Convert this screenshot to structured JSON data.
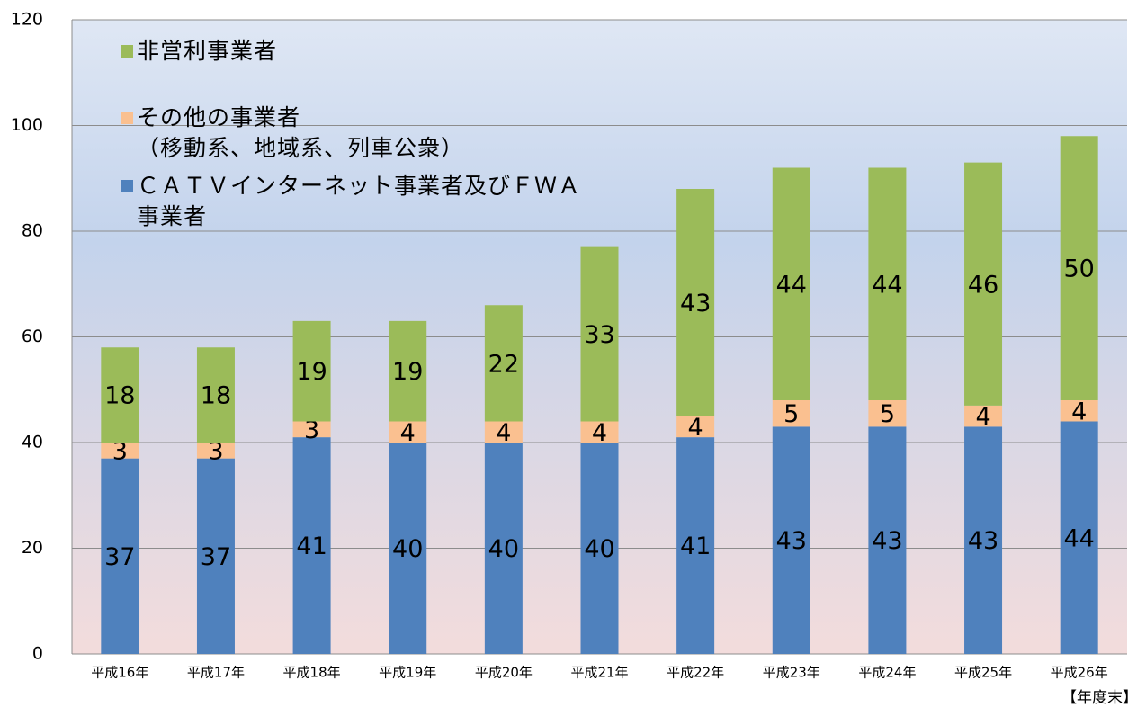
{
  "chart_data": {
    "type": "stacked_bar",
    "x_label": "【年度末】",
    "categories": [
      "平成16年",
      "平成17年",
      "平成18年",
      "平成19年",
      "平成20年",
      "平成21年",
      "平成22年",
      "平成23年",
      "平成24年",
      "平成25年",
      "平成26年"
    ],
    "series": [
      {
        "name": "ＣＡＴＶインターネット事業者及びＦＷＡ\n事業者",
        "color": "#4f81bd",
        "values": [
          37,
          37,
          41,
          40,
          40,
          40,
          41,
          43,
          43,
          43,
          44
        ]
      },
      {
        "name": "その他の事業者\n（移動系、地域系、列車公衆）",
        "color": "#fac090",
        "values": [
          3,
          3,
          3,
          4,
          4,
          4,
          4,
          5,
          5,
          4,
          4
        ]
      },
      {
        "name": "非営利事業者",
        "color": "#9bbb59",
        "values": [
          18,
          18,
          19,
          19,
          22,
          33,
          43,
          44,
          44,
          46,
          50
        ]
      }
    ],
    "ylim": [
      0,
      120
    ],
    "yticks": [
      0,
      20,
      40,
      60,
      80,
      100,
      120
    ],
    "grid": true
  }
}
